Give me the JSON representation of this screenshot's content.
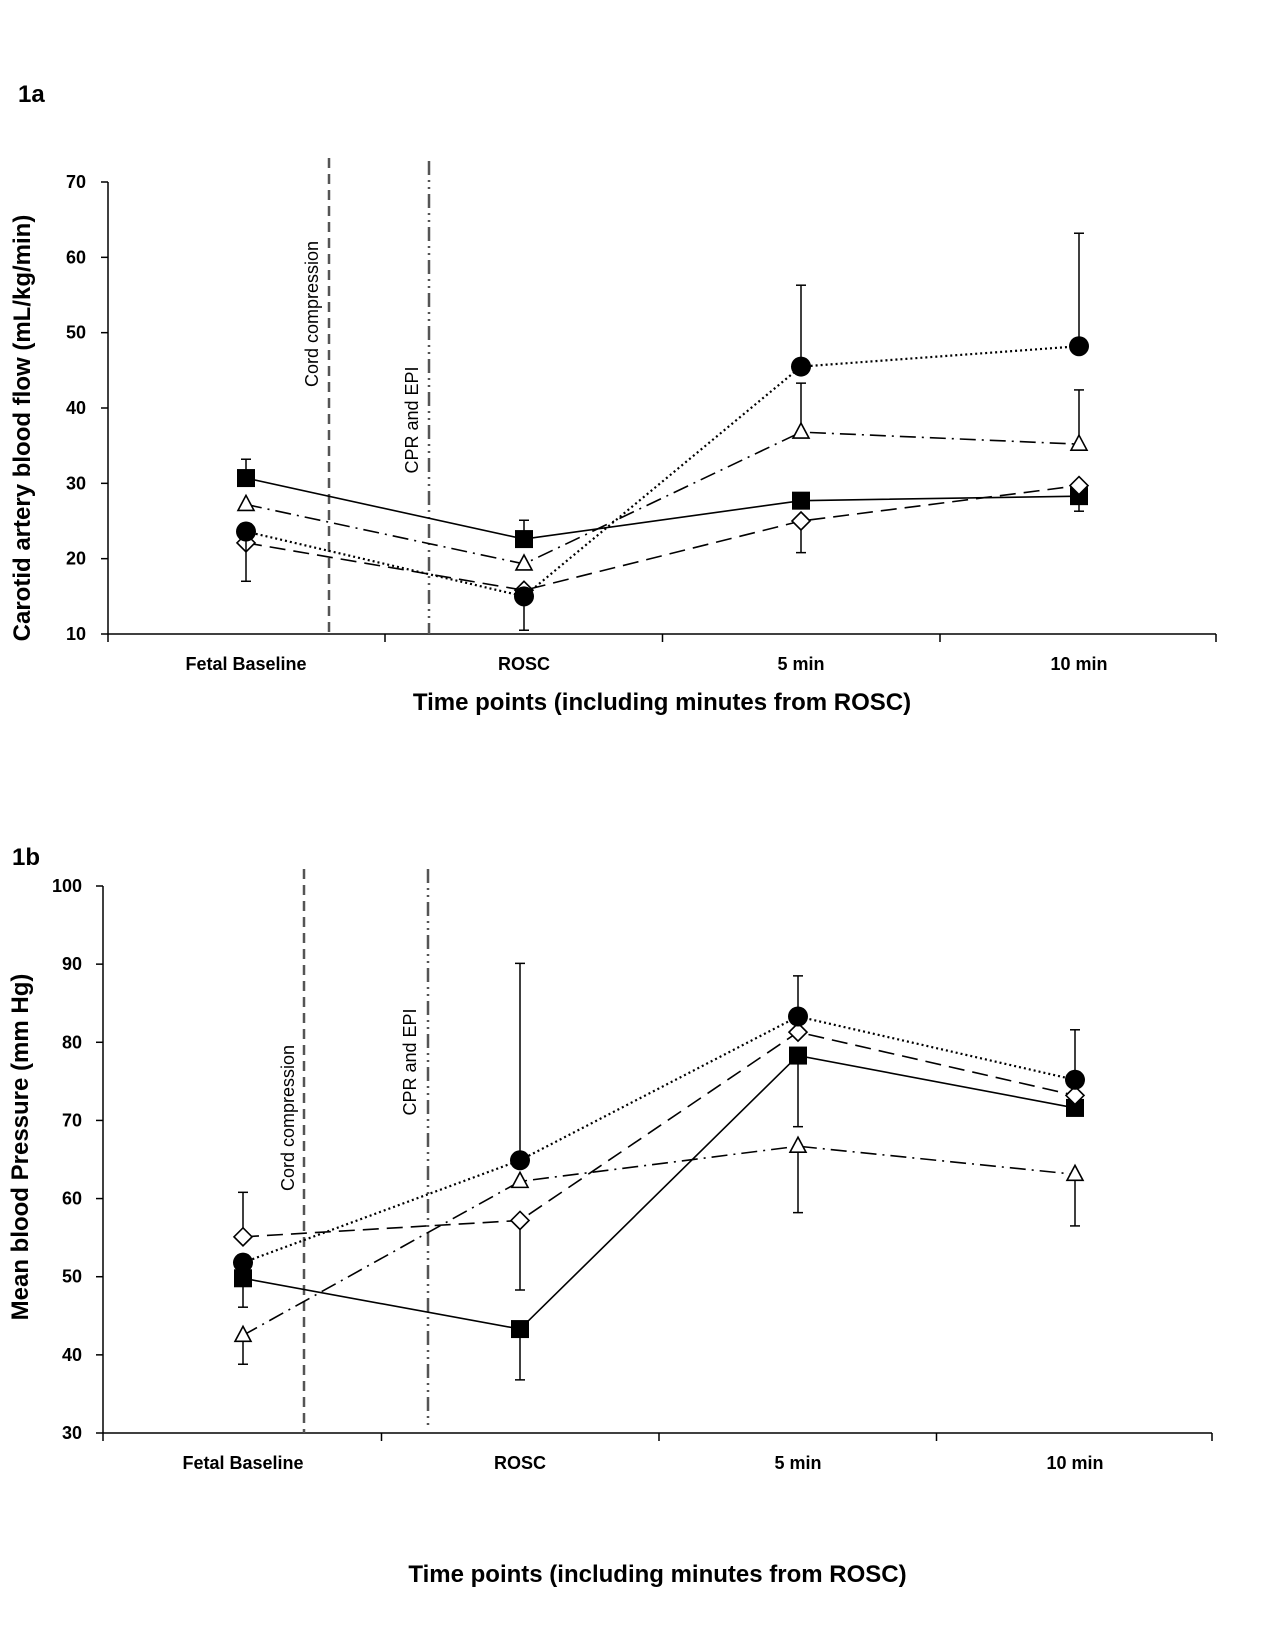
{
  "chart_data": [
    {
      "panel": "1a",
      "type": "line",
      "categories": [
        "Fetal Baseline",
        "ROSC",
        "5 min",
        "10 min"
      ],
      "xlabel": "Time points (including minutes from ROSC)",
      "ylabel": "Carotid artery blood flow (mL/kg/min)",
      "ylim": [
        10,
        70
      ],
      "yticks": [
        10,
        20,
        30,
        40,
        50,
        60,
        70
      ],
      "grid": false,
      "annotations": [
        "Cord compression",
        "CPR and EPI"
      ],
      "series": [
        {
          "marker": "filled-square",
          "line": "solid",
          "values": [
            30.7,
            22.6,
            27.7,
            28.3
          ],
          "err_up": [
            2.5,
            2.5,
            0,
            0
          ],
          "err_down": [
            0,
            0,
            0,
            2
          ]
        },
        {
          "marker": "open-triangle",
          "line": "dash-dot",
          "values": [
            27.2,
            19.3,
            36.8,
            35.2
          ],
          "err_up": [
            0,
            0,
            6.5,
            7.2
          ],
          "err_down": [
            0,
            0,
            0,
            0
          ]
        },
        {
          "marker": "open-diamond",
          "line": "dashed",
          "values": [
            22.1,
            15.8,
            25,
            29.7
          ],
          "err_up": [
            0,
            0,
            0,
            0
          ],
          "err_down": [
            0,
            0,
            4.2,
            0
          ]
        },
        {
          "marker": "filled-circle",
          "line": "dotted",
          "values": [
            23.6,
            15,
            45.5,
            48.2
          ],
          "err_up": [
            0,
            0,
            10.8,
            15
          ],
          "err_down": [
            6.6,
            4.5,
            0,
            0
          ]
        }
      ]
    },
    {
      "panel": "1b",
      "type": "line",
      "categories": [
        "Fetal Baseline",
        "ROSC",
        "5 min",
        "10 min"
      ],
      "xlabel": "Time points (including minutes from ROSC)",
      "ylabel": "Mean blood Pressure (mm Hg)",
      "ylim": [
        30,
        100
      ],
      "yticks": [
        30,
        40,
        50,
        60,
        70,
        80,
        90,
        100
      ],
      "grid": false,
      "annotations": [
        "Cord compression",
        "CPR and EPI"
      ],
      "series": [
        {
          "marker": "filled-square",
          "line": "solid",
          "values": [
            49.8,
            43.3,
            78.3,
            71.6
          ],
          "err_up": [
            0,
            0,
            0,
            0
          ],
          "err_down": [
            0,
            6.5,
            9.1,
            0
          ]
        },
        {
          "marker": "open-triangle",
          "line": "dash-dot",
          "values": [
            42.5,
            62.2,
            66.7,
            63.1
          ],
          "err_up": [
            0,
            0,
            0,
            0
          ],
          "err_down": [
            3.7,
            0,
            8.5,
            6.6
          ]
        },
        {
          "marker": "open-diamond",
          "line": "dashed",
          "values": [
            55.1,
            57.2,
            81.3,
            73.2
          ],
          "err_up": [
            5.7,
            0,
            0,
            0
          ],
          "err_down": [
            0,
            8.9,
            0,
            0
          ]
        },
        {
          "marker": "filled-circle",
          "line": "dotted",
          "values": [
            51.8,
            64.9,
            83.3,
            75.2
          ],
          "err_up": [
            0,
            25.2,
            5.2,
            6.4
          ],
          "err_down": [
            5.7,
            0,
            0,
            0
          ]
        }
      ]
    }
  ]
}
